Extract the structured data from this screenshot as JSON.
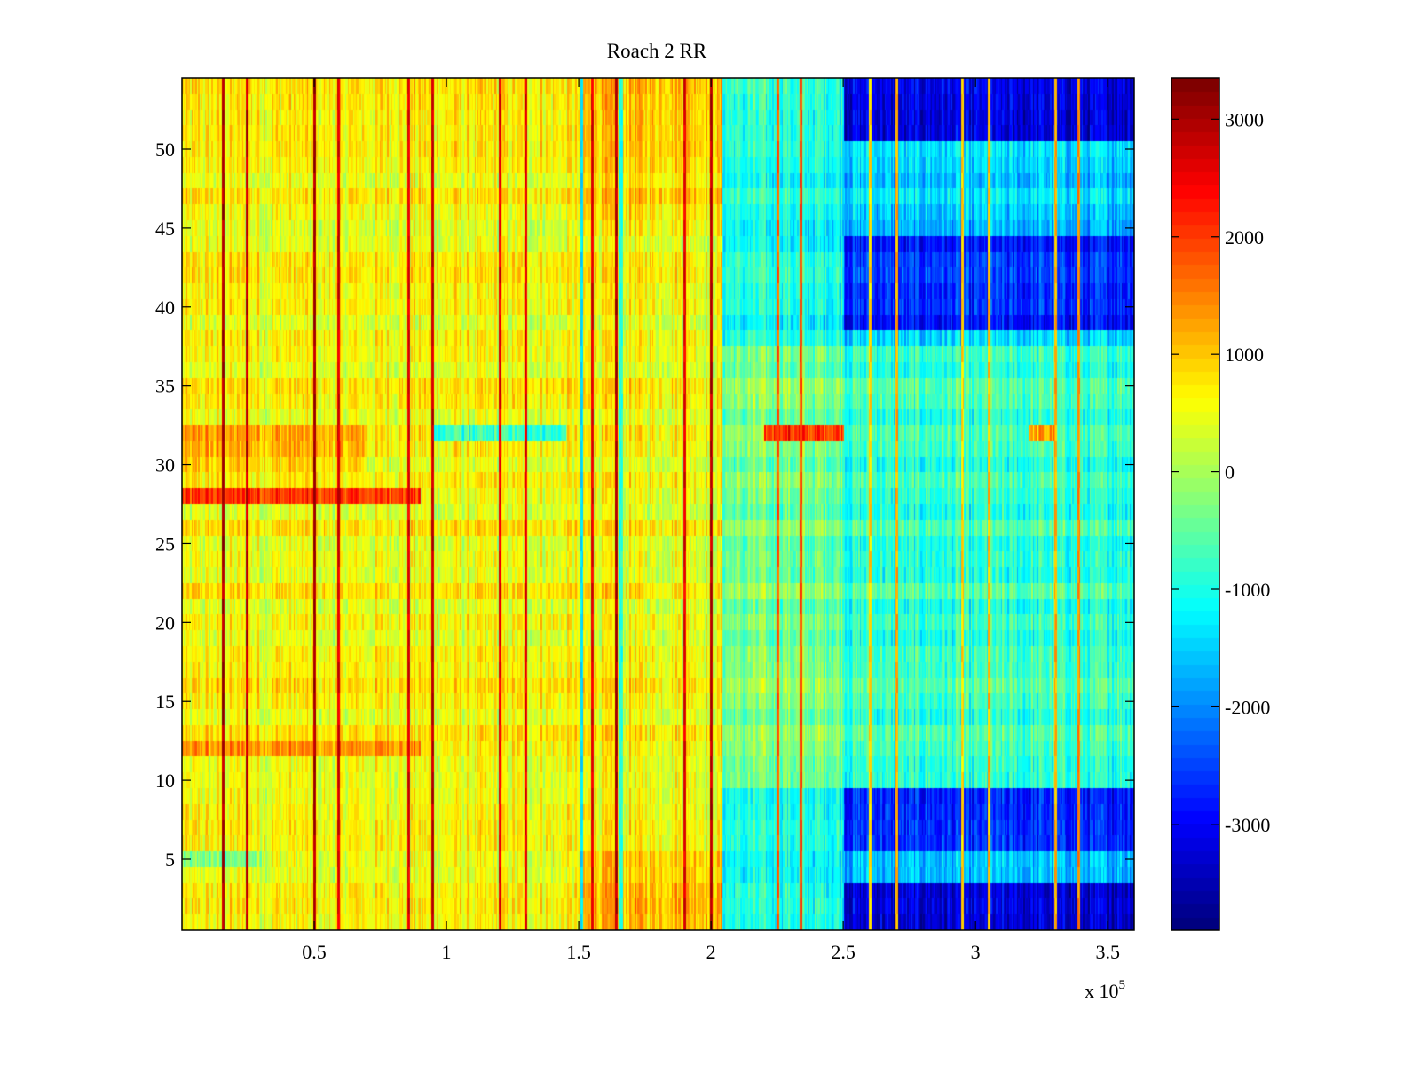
{
  "chart_data": {
    "type": "heatmap",
    "title": "Roach 2 RR",
    "xlabel": "",
    "ylabel": "",
    "x_multiplier_label": "x 10",
    "x_multiplier_exponent": "5",
    "xlim": [
      0,
      3.6
    ],
    "x_scale_factor": 100000,
    "ylim": [
      0.5,
      54.5
    ],
    "n_rows": 54,
    "n_cols": 720,
    "x_ticks": [
      0.5,
      1,
      1.5,
      2,
      2.5,
      3,
      3.5
    ],
    "x_tick_labels": [
      "0.5",
      "1",
      "1.5",
      "2",
      "2.5",
      "3",
      "3.5"
    ],
    "y_ticks": [
      5,
      10,
      15,
      20,
      25,
      30,
      35,
      40,
      45,
      50
    ],
    "y_tick_labels": [
      "5",
      "10",
      "15",
      "20",
      "25",
      "30",
      "35",
      "40",
      "45",
      "50"
    ],
    "colormap": "jet",
    "clim": [
      -3900,
      3350
    ],
    "colorbar": {
      "ticks": [
        3000,
        2000,
        1000,
        0,
        -1000,
        -2000,
        -3000
      ],
      "tick_labels": [
        "3000",
        "2000",
        "1000",
        "0",
        "-1000",
        "-2000",
        "-3000"
      ],
      "placement": "right"
    },
    "column_segments": [
      {
        "x_start": 0.0,
        "x_end": 2.04,
        "mean_value": 600,
        "note": "warm (yellow/orange) region"
      },
      {
        "x_start": 2.04,
        "x_end": 2.5,
        "mean_value": -1000,
        "note": "cyan region"
      },
      {
        "x_start": 2.5,
        "x_end": 3.6,
        "mean_value": -1500,
        "note": "blue region"
      }
    ],
    "row_offsets": [
      {
        "rows": [
          28,
          28
        ],
        "offset": 1500,
        "x_range": [
          0,
          0.9
        ]
      },
      {
        "rows": [
          12,
          12
        ],
        "offset": 700,
        "x_range": [
          0,
          0.9
        ]
      },
      {
        "rows": [
          30,
          32
        ],
        "offset": 500,
        "x_range": [
          0,
          0.7
        ]
      },
      {
        "rows": [
          32,
          32
        ],
        "offset": -1500,
        "x_range": [
          0.95,
          1.45
        ]
      },
      {
        "rows": [
          32,
          32
        ],
        "offset": 2200,
        "x_range": [
          2.2,
          2.5
        ]
      },
      {
        "rows": [
          32,
          32
        ],
        "offset": 1800,
        "x_range": [
          3.2,
          3.3
        ]
      },
      {
        "rows": [
          5,
          5
        ],
        "offset": -800,
        "x_range": [
          0,
          0.3
        ]
      },
      {
        "rows": [
          51,
          54
        ],
        "offset": -1800,
        "x_range": [
          2.5,
          3.6
        ]
      },
      {
        "rows": [
          39,
          44
        ],
        "offset": -1200,
        "x_range": [
          2.5,
          3.6
        ]
      },
      {
        "rows": [
          1,
          3
        ],
        "offset": -1800,
        "x_range": [
          2.5,
          3.6
        ]
      },
      {
        "rows": [
          6,
          9
        ],
        "offset": -1200,
        "x_range": [
          2.5,
          3.6
        ]
      },
      {
        "rows": [
          10,
          37
        ],
        "offset": 700,
        "x_range": [
          2.04,
          3.6
        ]
      },
      {
        "rows": [
          45,
          54
        ],
        "offset": 300,
        "x_range": [
          1.5,
          2.04
        ]
      },
      {
        "rows": [
          1,
          5
        ],
        "offset": 500,
        "x_range": [
          1.5,
          2.04
        ]
      }
    ],
    "spike_columns": [
      {
        "x": 0.155,
        "value": 3300
      },
      {
        "x": 0.245,
        "value": 3100
      },
      {
        "x": 0.5,
        "value": 3300
      },
      {
        "x": 0.59,
        "value": 3000
      },
      {
        "x": 0.855,
        "value": 2900
      },
      {
        "x": 0.945,
        "value": 3100
      },
      {
        "x": 1.2,
        "value": 2800
      },
      {
        "x": 1.3,
        "value": 2800
      },
      {
        "x": 1.55,
        "value": 2900
      },
      {
        "x": 1.64,
        "value": 3200
      },
      {
        "x": 1.9,
        "value": 2900
      },
      {
        "x": 2.0,
        "value": 3200
      },
      {
        "x": 2.25,
        "value": 2000
      },
      {
        "x": 2.34,
        "value": 2200
      },
      {
        "x": 2.6,
        "value": 1200
      },
      {
        "x": 2.7,
        "value": 1500
      },
      {
        "x": 2.95,
        "value": 1200
      },
      {
        "x": 3.05,
        "value": 1400
      },
      {
        "x": 3.3,
        "value": 1500
      },
      {
        "x": 3.39,
        "value": 1700
      }
    ],
    "cold_columns": [
      {
        "x": 1.51,
        "value": -1600
      },
      {
        "x": 1.66,
        "value": -1200
      }
    ]
  }
}
